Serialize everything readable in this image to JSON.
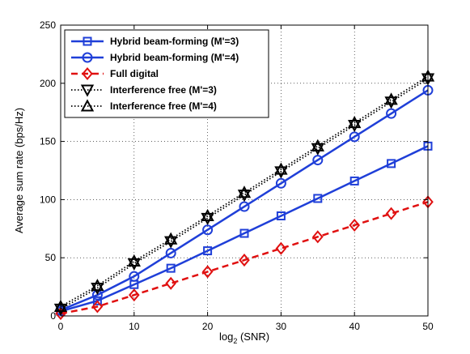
{
  "chart_data": {
    "type": "line",
    "title": "",
    "xlabel": "log",
    "xlabel_sub": "2",
    "xlabel_rest": " (SNR)",
    "ylabel": "Average sum rate (bps/Hz)",
    "xlim": [
      0,
      50
    ],
    "ylim": [
      0,
      250
    ],
    "xticks": [
      "0",
      "10",
      "20",
      "30",
      "40",
      "50"
    ],
    "yticks": [
      "0",
      "50",
      "100",
      "150",
      "200",
      "250"
    ],
    "grid": "on",
    "legend_position": "top-left",
    "x": [
      0,
      5,
      10,
      15,
      20,
      25,
      30,
      35,
      40,
      45,
      50
    ],
    "series": [
      {
        "name": "Hybrid beam-forming (M'=3)",
        "values": [
          4,
          13,
          27,
          41,
          56,
          71,
          86,
          101,
          116,
          131,
          146
        ],
        "color": "#1f3fd8",
        "dash": "solid",
        "marker": "square"
      },
      {
        "name": "Hybrid beam-forming (M'=4)",
        "values": [
          5,
          18,
          34,
          54,
          74,
          94,
          114,
          134,
          154,
          174,
          194
        ],
        "color": "#1f3fd8",
        "dash": "solid",
        "marker": "circle"
      },
      {
        "name": "Full digital",
        "values": [
          2,
          8,
          18,
          28,
          38,
          48,
          58,
          68,
          78,
          88,
          98
        ],
        "color": "#e01010",
        "dash": "dashed",
        "marker": "diamond"
      },
      {
        "name": "Interference free (M'=3)",
        "values": [
          6,
          24,
          45,
          64,
          84,
          104,
          124,
          144,
          164,
          184,
          204
        ],
        "color": "#000000",
        "dash": "dotted",
        "marker": "triangle-down"
      },
      {
        "name": "Interference free (M'=4)",
        "values": [
          8,
          26,
          47,
          66,
          86,
          106,
          126,
          146,
          166,
          186,
          206
        ],
        "color": "#000000",
        "dash": "dotted",
        "marker": "triangle-up"
      }
    ]
  }
}
